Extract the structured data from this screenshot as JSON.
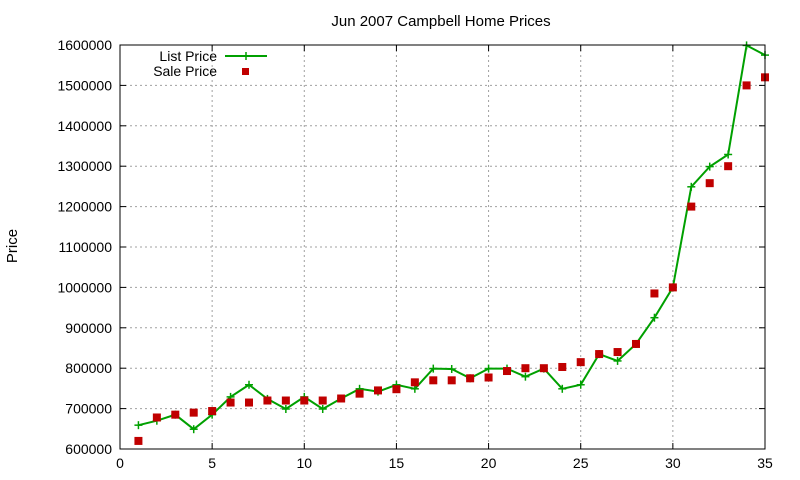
{
  "chart_data": {
    "type": "line",
    "title": "Jun 2007 Campbell Home Prices",
    "xlabel": "",
    "ylabel": "Price",
    "xlim": [
      0,
      35
    ],
    "ylim": [
      600000,
      1600000
    ],
    "xticks": [
      0,
      5,
      10,
      15,
      20,
      25,
      30,
      35
    ],
    "yticks": [
      600000,
      700000,
      800000,
      900000,
      1000000,
      1100000,
      1200000,
      1300000,
      1400000,
      1500000,
      1600000
    ],
    "grid": true,
    "legend_position": "top-left",
    "series": [
      {
        "name": "List Price",
        "style": "line+cross",
        "color": "#00a000",
        "x": [
          1,
          2,
          3,
          4,
          5,
          6,
          7,
          8,
          9,
          10,
          11,
          12,
          13,
          14,
          15,
          16,
          17,
          18,
          19,
          20,
          21,
          22,
          23,
          24,
          25,
          26,
          27,
          28,
          29,
          30,
          31,
          32,
          33,
          34,
          35
        ],
        "values": [
          659000,
          670000,
          685000,
          649000,
          685000,
          729000,
          759000,
          724000,
          699000,
          729000,
          699000,
          725000,
          749000,
          742000,
          759000,
          749000,
          799000,
          798000,
          775000,
          799000,
          799000,
          779000,
          799000,
          749000,
          759000,
          835000,
          818000,
          860000,
          925000,
          1000000,
          1249000,
          1299000,
          1329000,
          1599000,
          1575000
        ]
      },
      {
        "name": "Sale Price",
        "style": "square",
        "color": "#c00000",
        "x": [
          1,
          2,
          3,
          4,
          5,
          6,
          7,
          8,
          9,
          10,
          11,
          12,
          13,
          14,
          15,
          16,
          17,
          18,
          19,
          20,
          21,
          22,
          23,
          24,
          25,
          26,
          27,
          28,
          29,
          30,
          31,
          32,
          33,
          34,
          35
        ],
        "values": [
          620000,
          678000,
          685000,
          690000,
          694000,
          715000,
          715000,
          720000,
          720000,
          720000,
          720000,
          725000,
          737000,
          745000,
          748000,
          765000,
          770000,
          770000,
          775000,
          777000,
          793000,
          800000,
          800000,
          803000,
          815000,
          835000,
          840000,
          860000,
          985000,
          1000000,
          1200000,
          1258000,
          1300000,
          1500000,
          1520000
        ]
      }
    ]
  }
}
